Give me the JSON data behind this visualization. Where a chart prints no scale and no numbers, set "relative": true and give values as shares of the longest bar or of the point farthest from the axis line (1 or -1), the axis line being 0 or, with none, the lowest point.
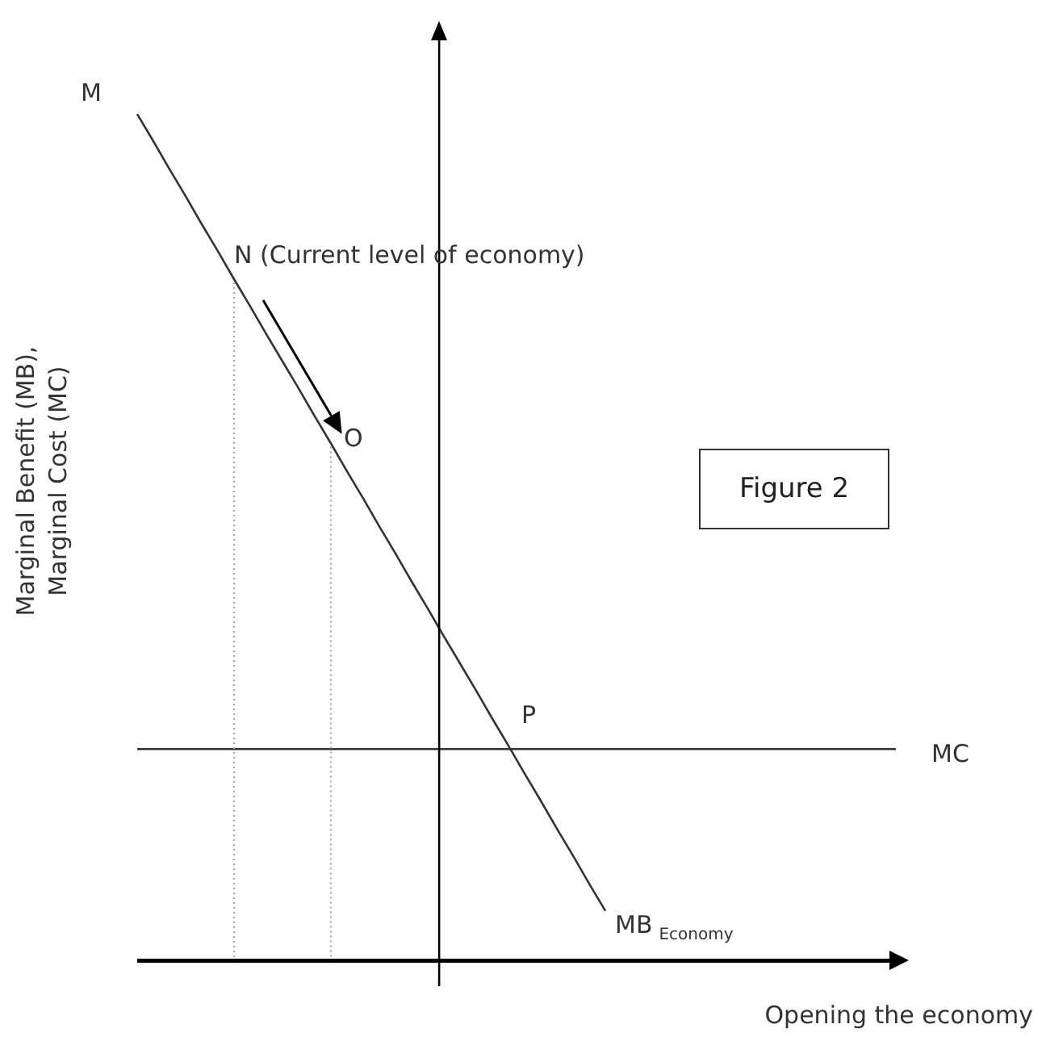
{
  "chart_data": {
    "type": "line",
    "relative": true,
    "ylabel": "Marginal Benefit (MB), Marginal Cost (MC)",
    "xlabel": "Opening the economy",
    "categories": [
      null,
      null,
      null,
      null,
      null,
      null,
      null,
      null,
      null,
      null,
      null,
      null,
      null,
      null,
      null,
      null,
      null,
      null,
      null,
      null,
      null,
      null,
      null,
      null,
      null,
      null,
      null,
      null,
      null,
      null,
      null,
      null,
      null,
      null,
      null,
      null,
      null,
      null,
      null,
      null,
      null,
      null,
      null,
      null,
      null,
      null,
      null,
      null
    ],
    "series": [
      {
        "name": "MB$_{Economy}$",
        "color": "#333333",
        "values": [
          1,
          0.968,
          0.935,
          0.903,
          0.87,
          0.838,
          0.805,
          0.773,
          0.74,
          0.708,
          0.676,
          0.643,
          0.611,
          0.578,
          0.546,
          0.513,
          0.481,
          0.448,
          0.416,
          0.383,
          0.351,
          0.319,
          0.286,
          0.254,
          0.221,
          0.189,
          0.156,
          0.124,
          0.091,
          0.059,
          null,
          null,
          null,
          null,
          null,
          null,
          null,
          null,
          null,
          null,
          null,
          null,
          null,
          null,
          null,
          null,
          null,
          null
        ]
      },
      {
        "name": "MC",
        "color": "#333333",
        "values": [
          0.25,
          0.25,
          0.25,
          0.25,
          0.25,
          0.25,
          0.25,
          0.25,
          0.25,
          0.25,
          0.25,
          0.25,
          0.25,
          0.25,
          0.25,
          0.25,
          0.25,
          0.25,
          0.25,
          0.25,
          0.25,
          0.25,
          0.25,
          0.25,
          0.25,
          0.25,
          0.25,
          0.25,
          0.25,
          0.25,
          0.25,
          0.25,
          0.25,
          0.25,
          0.25,
          0.25,
          0.25,
          0.25,
          0.25,
          0.25,
          0.25,
          0.25,
          0.25,
          0.25,
          0.25,
          0.25,
          0.25,
          0.25
        ]
      }
    ],
    "annotations": [
      "M",
      "N (Current level of economy)",
      "O",
      "P",
      "Figure 2"
    ]
  }
}
